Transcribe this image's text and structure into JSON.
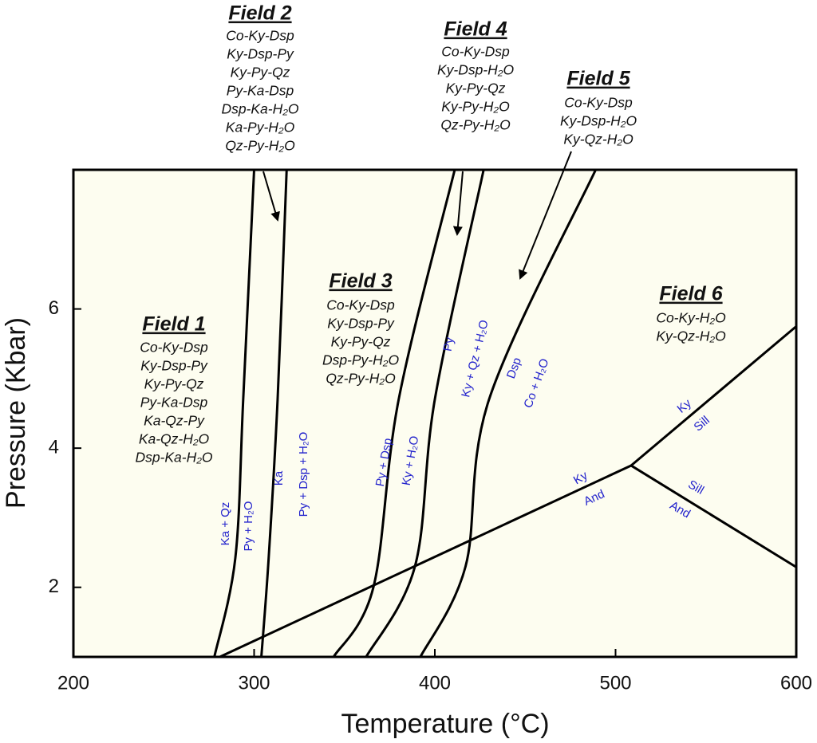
{
  "chart_data": {
    "type": "line",
    "xlabel": "Temperature (°C)",
    "ylabel": "Pressure (Kbar)",
    "xlim": [
      200,
      600
    ],
    "ylim": [
      1,
      8
    ],
    "xticks": [
      200,
      300,
      400,
      500,
      600
    ],
    "yticks": [
      2,
      4,
      6
    ],
    "background": "#fdfdf0",
    "color": "#000000",
    "label_color": "#2222cc",
    "series": [
      {
        "x": [
          278,
          289.6,
          294,
          300
        ],
        "values": [
          1,
          2.42,
          4.72,
          8
        ],
        "labels": [
          "Ka + Qz",
          "Py + H₂O"
        ]
      },
      {
        "x": [
          304,
          308,
          313,
          318
        ],
        "values": [
          1,
          2.4,
          4.7,
          8
        ],
        "labels": [
          "Ka",
          "Py + Dsp + H₂O"
        ]
      },
      {
        "x": [
          344,
          366,
          380,
          411
        ],
        "values": [
          1,
          2,
          4.7,
          8
        ],
        "labels": [
          "Py + Dsp",
          "Ky + H₂O"
        ]
      },
      {
        "x": [
          362,
          389,
          400,
          427
        ],
        "values": [
          1,
          2.3,
          4.7,
          8
        ],
        "labels": [
          "Py",
          "Ky + Qz + H₂O"
        ]
      },
      {
        "x": [
          392,
          417,
          430,
          489
        ],
        "values": [
          1,
          2.3,
          4.7,
          8
        ],
        "labels": [
          "Dsp",
          "Co + H₂O"
        ]
      },
      {
        "x": [
          281,
          508.6
        ],
        "values": [
          1,
          3.75
        ],
        "labels": [
          "Ky",
          "And"
        ]
      },
      {
        "x": [
          508.6,
          600
        ],
        "values": [
          3.75,
          5.75
        ],
        "labels": [
          "Ky",
          "Sill"
        ]
      },
      {
        "x": [
          508.6,
          600
        ],
        "values": [
          3.75,
          2.29
        ],
        "labels": [
          "Sill",
          "And"
        ]
      }
    ],
    "fields": [
      {
        "title": "Field 1",
        "assemblages": [
          "Co-Ky-Dsp",
          "Ky-Dsp-Py",
          "Ky-Py-Qz",
          "Py-Ka-Dsp",
          "Ka-Qz-Py",
          "Ka-Qz-H₂O",
          "Dsp-Ka-H₂O"
        ]
      },
      {
        "title": "Field 2",
        "assemblages": [
          "Co-Ky-Dsp",
          "Ky-Dsp-Py",
          "Ky-Py-Qz",
          "Py-Ka-Dsp",
          "Dsp-Ka-H₂O",
          "Ka-Py-H₂O",
          "Qz-Py-H₂O"
        ]
      },
      {
        "title": "Field 3",
        "assemblages": [
          "Co-Ky-Dsp",
          "Ky-Dsp-Py",
          "Ky-Py-Qz",
          "Dsp-Py-H₂O",
          "Qz-Py-H₂O"
        ]
      },
      {
        "title": "Field 4",
        "assemblages": [
          "Co-Ky-Dsp",
          "Ky-Dsp-H₂O",
          "Ky-Py-Qz",
          "Ky-Py-H₂O",
          "Qz-Py-H₂O"
        ]
      },
      {
        "title": "Field 5",
        "assemblages": [
          "Co-Ky-Dsp",
          "Ky-Dsp-H₂O",
          "Ky-Qz-H₂O"
        ]
      },
      {
        "title": "Field 6",
        "assemblages": [
          "Co-Ky-H₂O",
          "Ky-Qz-H₂O"
        ]
      }
    ]
  }
}
